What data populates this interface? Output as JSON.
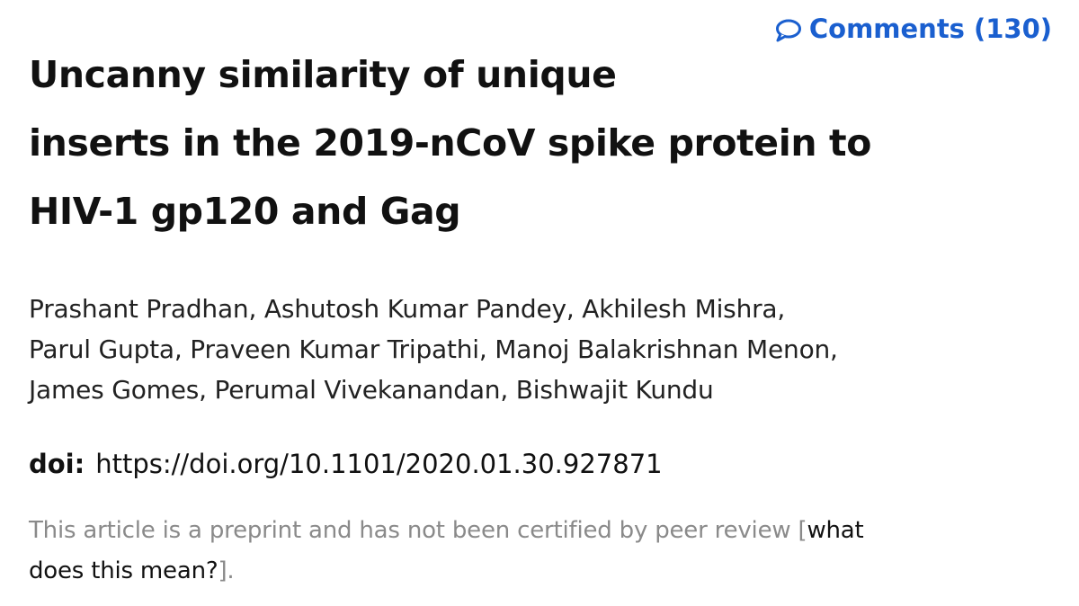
{
  "comments": {
    "icon": "speech-bubble-icon",
    "label": "Comments",
    "count": "(130)",
    "color": "#1a5fcf"
  },
  "article": {
    "title_lines": [
      "Uncanny similarity of unique",
      "inserts in the 2019-nCoV spike protein to",
      "HIV-1 gp120 and Gag"
    ],
    "author_lines": [
      "Prashant Pradhan, Ashutosh Kumar Pandey, Akhilesh Mishra,",
      "Parul Gupta, Praveen Kumar Tripathi, Manoj Balakrishnan Menon,",
      "James Gomes, Perumal Vivekanandan, Bishwajit Kundu"
    ],
    "doi_label": "doi:",
    "doi_url": "https://doi.org/10.1101/2020.01.30.927871"
  },
  "notice": {
    "text_line1": "This article is a preprint and has not been certified by peer review [",
    "link_line1": "what",
    "link_line2": "does this mean?",
    "text_end": "].",
    "text_color": "#8a8a8a"
  }
}
